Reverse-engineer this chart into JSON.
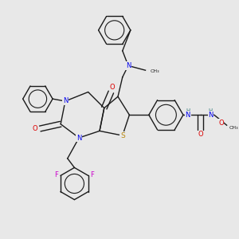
{
  "background_color": "#e8e8e8",
  "bond_color": "#1a1a1a",
  "atom_colors": {
    "N": "#0000ee",
    "O": "#dd0000",
    "S": "#b8860b",
    "F": "#cc00cc",
    "H": "#3a8080",
    "C": "#1a1a1a"
  },
  "figsize": [
    3.0,
    3.0
  ],
  "dpi": 100
}
